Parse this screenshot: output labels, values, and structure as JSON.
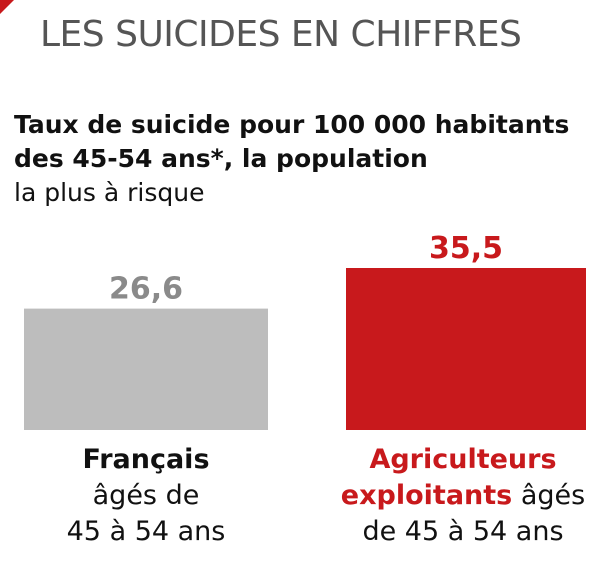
{
  "header": {
    "title": "LES SUICIDES EN CHIFFRES"
  },
  "subtitle": {
    "bold_line1": "Taux de suicide pour 100 000 habitants",
    "bold_line2": "des 45-54 ans*, la population",
    "light_line": "la plus à risque"
  },
  "colors": {
    "accent": "#c8191c",
    "gray_bar": "#bdbdbd",
    "gray_value": "#8a8a8a"
  },
  "chart_data": {
    "type": "bar",
    "categories": [
      "Français âgés de 45 à 54 ans",
      "Agriculteurs exploitants âgés de 45 à 54 ans"
    ],
    "values": [
      26.6,
      35.5
    ],
    "value_labels": [
      "26,6",
      "35,5"
    ],
    "category_label_parts": [
      {
        "strong": "Français",
        "rest_line1": "âgés de",
        "rest_line2": "45 à 54 ans"
      },
      {
        "strong_line1": "Agriculteurs",
        "strong_line2": "exploitants",
        "rest_inline": " âgés",
        "rest_line3": "de 45 à 54 ans"
      }
    ],
    "title": "Taux de suicide pour 100 000 habitants des 45-54 ans*, la population la plus à risque",
    "xlabel": "",
    "ylabel": "",
    "ylim": [
      0,
      35.5
    ]
  }
}
